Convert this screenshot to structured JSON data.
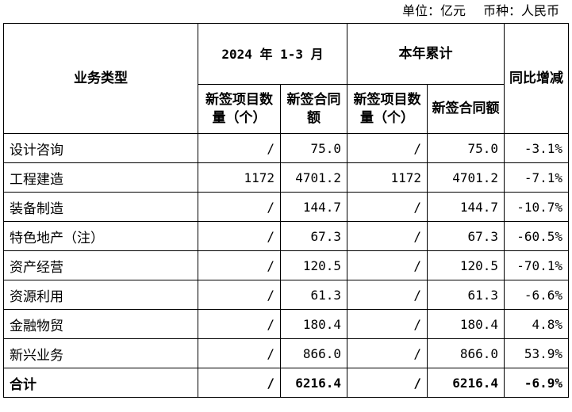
{
  "unit_note": {
    "unit": "单位：亿元",
    "currency": "币种：人民币"
  },
  "header": {
    "category": "业务类型",
    "period": "2024 年 1-3 月",
    "ytd": "本年累计",
    "yoy": "同比增减",
    "new_projects": "新签项目数量（个）",
    "new_contract": "新签合同额"
  },
  "rows": [
    {
      "type": "设计咨询",
      "q_count": "/",
      "q_amount": "75.0",
      "y_count": "/",
      "y_amount": "75.0",
      "yoy": "-3.1%"
    },
    {
      "type": "工程建造",
      "q_count": "1172",
      "q_amount": "4701.2",
      "y_count": "1172",
      "y_amount": "4701.2",
      "yoy": "-7.1%"
    },
    {
      "type": "装备制造",
      "q_count": "/",
      "q_amount": "144.7",
      "y_count": "/",
      "y_amount": "144.7",
      "yoy": "-10.7%"
    },
    {
      "type": "特色地产（注）",
      "q_count": "/",
      "q_amount": "67.3",
      "y_count": "/",
      "y_amount": "67.3",
      "yoy": "-60.5%"
    },
    {
      "type": "资产经营",
      "q_count": "/",
      "q_amount": "120.5",
      "y_count": "/",
      "y_amount": "120.5",
      "yoy": "-70.1%"
    },
    {
      "type": "资源利用",
      "q_count": "/",
      "q_amount": "61.3",
      "y_count": "/",
      "y_amount": "61.3",
      "yoy": "-6.6%"
    },
    {
      "type": "金融物贸",
      "q_count": "/",
      "q_amount": "180.4",
      "y_count": "/",
      "y_amount": "180.4",
      "yoy": "4.8%"
    },
    {
      "type": "新兴业务",
      "q_count": "/",
      "q_amount": "866.0",
      "y_count": "/",
      "y_amount": "866.0",
      "yoy": "53.9%"
    }
  ],
  "total": {
    "type": "合计",
    "q_count": "/",
    "q_amount": "6216.4",
    "y_count": "/",
    "y_amount": "6216.4",
    "yoy": "-6.9%"
  }
}
